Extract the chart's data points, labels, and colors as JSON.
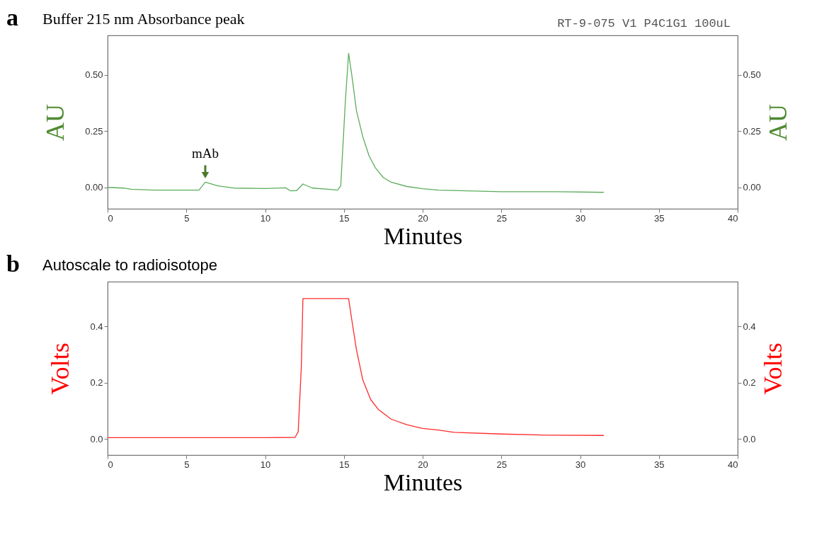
{
  "chart_data": [
    {
      "type": "line",
      "title": "Buffer 215 nm Absorbance peak",
      "xlabel": "Minutes",
      "ylabel": "AU",
      "y2label": "AU",
      "annotations": [
        "a",
        "RT-9-075 V1 P4C1G1 100uL",
        {
          "text": "mAb",
          "x": 6.2,
          "y": 0.023
        }
      ],
      "x": [
        0,
        1,
        1.5,
        3,
        5.8,
        6.2,
        7,
        8,
        10,
        11.3,
        11.6,
        12,
        12.4,
        13,
        14,
        14.6,
        14.8,
        15.1,
        15.3,
        15.5,
        15.8,
        16.2,
        16.6,
        17,
        17.5,
        18,
        19,
        20,
        21,
        25,
        28.5,
        31.5
      ],
      "series": [
        {
          "color": "#5cad5c",
          "values": [
            0.0,
            -0.003,
            -0.008,
            -0.012,
            -0.012,
            0.023,
            0.007,
            -0.003,
            -0.005,
            -0.002,
            -0.015,
            -0.014,
            0.015,
            -0.003,
            -0.008,
            -0.012,
            0.007,
            0.39,
            0.595,
            0.5,
            0.34,
            0.225,
            0.14,
            0.087,
            0.044,
            0.023,
            0.004,
            -0.006,
            -0.012,
            -0.019,
            -0.019,
            -0.022
          ]
        }
      ],
      "xlim": [
        0,
        40
      ],
      "xticks": [
        0,
        5,
        10,
        15,
        20,
        25,
        30,
        35,
        40
      ],
      "ylim": [
        -0.095,
        0.675
      ],
      "yticks": [
        {
          "value": 0,
          "label": "0.00"
        },
        {
          "value": 0.25,
          "label": "0.25"
        },
        {
          "value": 0.5,
          "label": "0.50"
        }
      ],
      "y2lim": [
        -0.095,
        0.675
      ],
      "y2ticks": [
        {
          "value": 0,
          "label": "0.00"
        },
        {
          "value": 0.25,
          "label": "0.25"
        },
        {
          "value": 0.5,
          "label": "0.50"
        }
      ]
    },
    {
      "type": "line",
      "title": "Autoscale to radioisotope",
      "xlabel": "Minutes",
      "ylabel": "Volts",
      "y2label": "Volts",
      "annotations": [
        "b"
      ],
      "x": [
        0,
        5,
        10,
        11.9,
        12.1,
        12.3,
        12.4,
        15.3,
        15.5,
        15.8,
        16.2,
        16.7,
        17.2,
        18,
        19,
        20,
        21,
        22,
        25,
        28,
        31.5
      ],
      "series": [
        {
          "color": "#ff2a2a",
          "values": [
            0.004,
            0.004,
            0.004,
            0.005,
            0.025,
            0.26,
            0.5,
            0.5,
            0.425,
            0.317,
            0.21,
            0.14,
            0.104,
            0.07,
            0.05,
            0.037,
            0.031,
            0.023,
            0.017,
            0.013,
            0.012
          ]
        }
      ],
      "xlim": [
        0,
        40
      ],
      "xticks": [
        0,
        5,
        10,
        15,
        20,
        25,
        30,
        35,
        40
      ],
      "ylim": [
        -0.058,
        0.56
      ],
      "yticks": [
        {
          "value": 0,
          "label": "0.0"
        },
        {
          "value": 0.2,
          "label": "0.2"
        },
        {
          "value": 0.4,
          "label": "0.4"
        }
      ],
      "y2lim": [
        -0.058,
        0.56
      ],
      "y2ticks": [
        {
          "value": 0,
          "label": "0.0"
        },
        {
          "value": 0.2,
          "label": "0.2"
        },
        {
          "value": 0.4,
          "label": "0.4"
        }
      ]
    }
  ]
}
